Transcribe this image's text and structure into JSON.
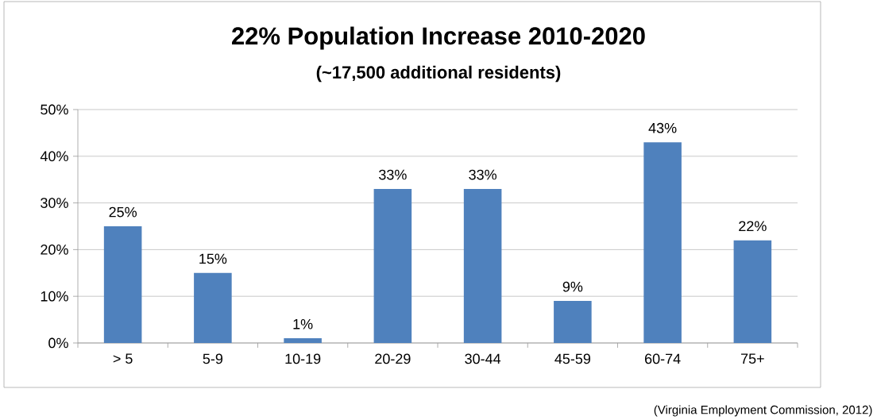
{
  "chart_data": {
    "type": "bar",
    "title": "22% Population Increase 2010-2020",
    "subtitle": "(~17,500 additional residents)",
    "categories": [
      "> 5",
      "5-9",
      "10-19",
      "20-29",
      "30-44",
      "45-59",
      "60-74",
      "75+"
    ],
    "values": [
      25,
      15,
      1,
      33,
      33,
      9,
      43,
      22
    ],
    "value_labels": [
      "25%",
      "15%",
      "1%",
      "33%",
      "33%",
      "9%",
      "43%",
      "22%"
    ],
    "color": "#4f81bd",
    "ylim": [
      0,
      50
    ],
    "yticks": [
      {
        "value": 0,
        "label": "0%"
      },
      {
        "value": 10,
        "label": "10%"
      },
      {
        "value": 20,
        "label": "20%"
      },
      {
        "value": 30,
        "label": "30%"
      },
      {
        "value": 40,
        "label": "40%"
      },
      {
        "value": 50,
        "label": "50%"
      }
    ],
    "grid": "y",
    "annotations": [
      "(Virginia Employment Commission, 2012)"
    ]
  }
}
